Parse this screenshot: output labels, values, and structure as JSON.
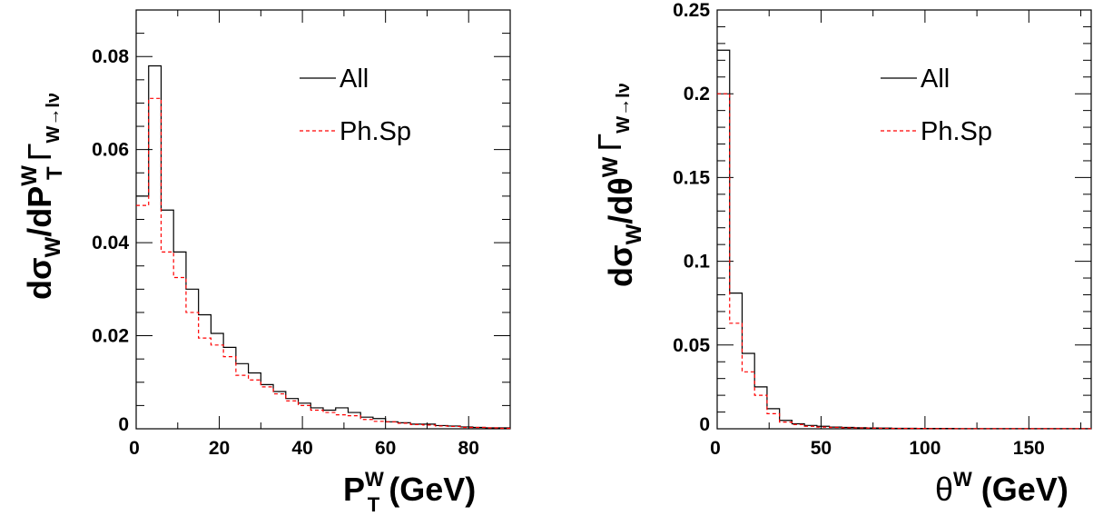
{
  "chart_data": [
    {
      "type": "histogram",
      "ylabel": {
        "main": "dσ",
        "sub1": "W",
        "mid": "/dP",
        "sup2": "W",
        "sub2": "T",
        "gamma": "Γ",
        "gsub": "W→lν"
      },
      "xlabel": {
        "main": "P",
        "sup": "W",
        "sub": "T",
        "unit": " (GeV)"
      },
      "xlim": [
        0,
        90
      ],
      "ylim": [
        0,
        0.09
      ],
      "x_ticks": [
        {
          "v": 0,
          "label": "0"
        },
        {
          "v": 20,
          "label": "20"
        },
        {
          "v": 40,
          "label": "40"
        },
        {
          "v": 60,
          "label": "60"
        },
        {
          "v": 80,
          "label": "80"
        }
      ],
      "y_ticks": [
        {
          "v": 0,
          "label": "0"
        },
        {
          "v": 0.02,
          "label": "0.02"
        },
        {
          "v": 0.04,
          "label": "0.04"
        },
        {
          "v": 0.06,
          "label": "0.06"
        },
        {
          "v": 0.08,
          "label": "0.08"
        }
      ],
      "bin_edges": [
        0,
        3,
        6,
        9,
        12,
        15,
        18,
        21,
        24,
        27,
        30,
        33,
        36,
        39,
        42,
        45,
        48,
        51,
        54,
        57,
        60,
        63,
        66,
        69,
        72,
        75,
        78,
        81,
        84,
        87,
        90
      ],
      "series": [
        {
          "name": "All",
          "color": "#000000",
          "dash": "none",
          "values": [
            0.05,
            0.078,
            0.047,
            0.038,
            0.03,
            0.0245,
            0.0205,
            0.0175,
            0.014,
            0.012,
            0.0095,
            0.008,
            0.0065,
            0.0055,
            0.0045,
            0.004,
            0.0045,
            0.0035,
            0.0025,
            0.0022,
            0.0015,
            0.0013,
            0.001,
            0.001,
            0.0007,
            0.0006,
            0.0004,
            0.0003,
            0.0002,
            0.0002
          ]
        },
        {
          "name": "Ph.Sp",
          "color": "#ff0000",
          "dash": "4,3",
          "values": [
            0.048,
            0.071,
            0.038,
            0.0325,
            0.025,
            0.0195,
            0.018,
            0.0155,
            0.0115,
            0.0105,
            0.009,
            0.0075,
            0.006,
            0.005,
            0.004,
            0.0035,
            0.003,
            0.0028,
            0.002,
            0.0016,
            0.0015,
            0.0012,
            0.0009,
            0.0008,
            0.0006,
            0.0005,
            0.0003,
            0.0003,
            0.0002,
            0.0001
          ]
        }
      ],
      "legend": [
        {
          "label": "All"
        },
        {
          "label": "Ph.Sp"
        }
      ]
    },
    {
      "type": "histogram",
      "ylabel": {
        "main": "dσ",
        "sub1": "W",
        "mid": "/dθ",
        "sup2": "W",
        "sub2": "",
        "gamma": "Γ",
        "gsub": "W→lν"
      },
      "xlabel": {
        "main": "θ",
        "sup": "W",
        "sub": "",
        "unit": " (GeV)"
      },
      "xlim": [
        0,
        180
      ],
      "ylim": [
        0,
        0.25
      ],
      "x_ticks": [
        {
          "v": 0,
          "label": "0"
        },
        {
          "v": 50,
          "label": "50"
        },
        {
          "v": 100,
          "label": "100"
        },
        {
          "v": 150,
          "label": "150"
        }
      ],
      "y_ticks": [
        {
          "v": 0,
          "label": "0"
        },
        {
          "v": 0.05,
          "label": "0.05"
        },
        {
          "v": 0.1,
          "label": "0.1"
        },
        {
          "v": 0.15,
          "label": "0.15"
        },
        {
          "v": 0.2,
          "label": "0.2"
        },
        {
          "v": 0.25,
          "label": "0.25"
        }
      ],
      "bin_edges": [
        0,
        6,
        12,
        18,
        24,
        30,
        36,
        42,
        48,
        54,
        60,
        66,
        72,
        78,
        84,
        90,
        96,
        102,
        108,
        114,
        120,
        126,
        132,
        138,
        144,
        150,
        156,
        162,
        168,
        174,
        180
      ],
      "series": [
        {
          "name": "All",
          "color": "#000000",
          "dash": "none",
          "values": [
            0.226,
            0.081,
            0.045,
            0.025,
            0.012,
            0.005,
            0.003,
            0.002,
            0.0015,
            0.001,
            0.0008,
            0.0006,
            0.0005,
            0.0004,
            0.0003,
            0.0003,
            0.0002,
            0.0002,
            0.0002,
            0.0001,
            0.0001,
            0.0001,
            0.0001,
            0.0001,
            0.0001,
            0.0001,
            0.0001,
            0.0001,
            0.0001,
            0.0001
          ]
        },
        {
          "name": "Ph.Sp",
          "color": "#ff0000",
          "dash": "4,3",
          "values": [
            0.2,
            0.063,
            0.034,
            0.02,
            0.009,
            0.004,
            0.0025,
            0.0015,
            0.001,
            0.0008,
            0.0006,
            0.0005,
            0.0004,
            0.0003,
            0.0002,
            0.0002,
            0.0002,
            0.0001,
            0.0001,
            0.0001,
            0.0001,
            0.0001,
            0.0001,
            0.0001,
            0.0001,
            0.0001,
            0.0001,
            0.0001,
            0.0001,
            0.0001
          ]
        }
      ],
      "legend": [
        {
          "label": "All"
        },
        {
          "label": "Ph.Sp"
        }
      ]
    }
  ]
}
